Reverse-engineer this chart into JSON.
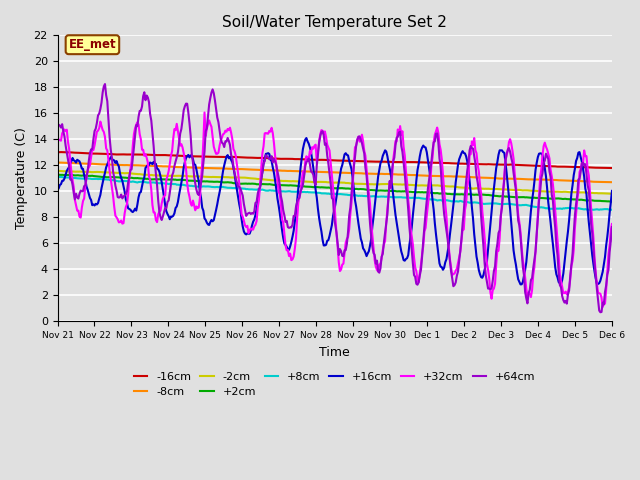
{
  "title": "Soil/Water Temperature Set 2",
  "xlabel": "Time",
  "ylabel": "Temperature (C)",
  "ylim": [
    0,
    22
  ],
  "yticks": [
    0,
    2,
    4,
    6,
    8,
    10,
    12,
    14,
    16,
    18,
    20,
    22
  ],
  "plot_bg_color": "#e0e0e0",
  "grid_color": "#ffffff",
  "annotation_text": "EE_met",
  "annotation_color": "#8B0000",
  "annotation_bg": "#ffff99",
  "annotation_border": "#8B4000",
  "series": [
    {
      "label": "-16cm",
      "color": "#cc0000",
      "lw": 1.5
    },
    {
      "label": "-8cm",
      "color": "#ff8800",
      "lw": 1.5
    },
    {
      "label": "-2cm",
      "color": "#cccc00",
      "lw": 1.5
    },
    {
      "label": "+2cm",
      "color": "#00aa00",
      "lw": 1.5
    },
    {
      "label": "+8cm",
      "color": "#00cccc",
      "lw": 1.5
    },
    {
      "label": "+16cm",
      "color": "#0000cc",
      "lw": 1.5
    },
    {
      "label": "+32cm",
      "color": "#ff00ff",
      "lw": 1.5
    },
    {
      "label": "+64cm",
      "color": "#9900cc",
      "lw": 1.5
    }
  ],
  "tick_labels": [
    "Nov 21",
    "Nov 22",
    "Nov 23",
    "Nov 24",
    "Nov 25",
    "Nov 26",
    "Nov 27",
    "Nov 28",
    "Nov 29",
    "Nov 30",
    "Dec 1",
    "Dec 2",
    "Dec 3",
    "Dec 4",
    "Dec 5",
    "Dec 6"
  ],
  "figsize": [
    6.4,
    4.8
  ],
  "dpi": 100
}
